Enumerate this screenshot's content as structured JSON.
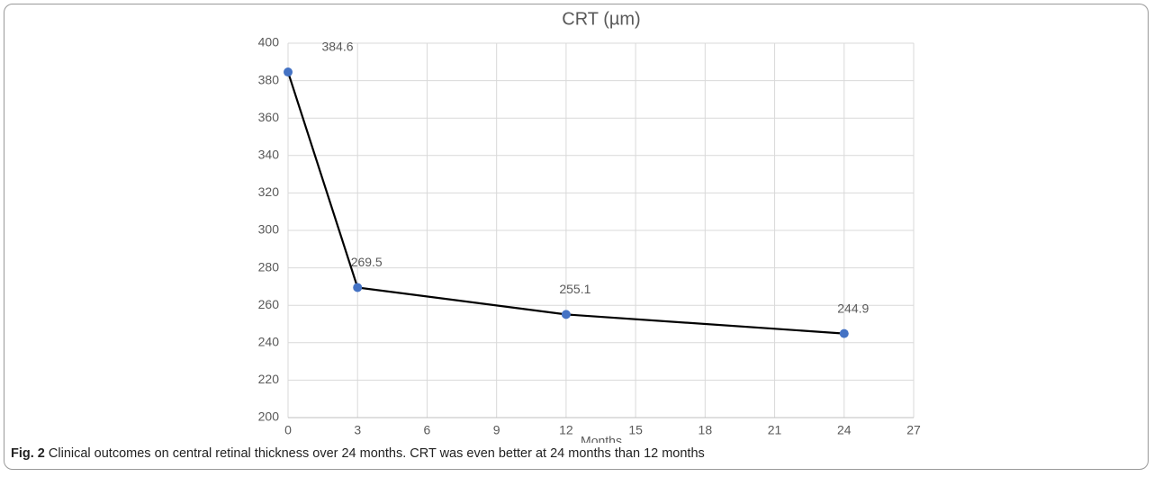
{
  "chart_data": {
    "type": "line",
    "title": "CRT (µm)",
    "x_label": "Months",
    "x": [
      0,
      3,
      12,
      24
    ],
    "series": [
      {
        "values": [
          384.6,
          269.5,
          255.1,
          244.9
        ],
        "color": "#000000",
        "marker_color": "#4472c4"
      }
    ],
    "xlim": [
      0,
      27
    ],
    "xticks": [
      0,
      3,
      6,
      9,
      12,
      15,
      18,
      21,
      24,
      27
    ],
    "ylim": [
      200,
      400
    ],
    "yticks": [
      200,
      220,
      240,
      260,
      280,
      300,
      320,
      340,
      360,
      380,
      400
    ],
    "grid": true
  },
  "caption": {
    "label": "Fig. 2",
    "text": "Clinical outcomes on central retinal thickness over 24 months. CRT was even better at 24 months than 12 months"
  }
}
